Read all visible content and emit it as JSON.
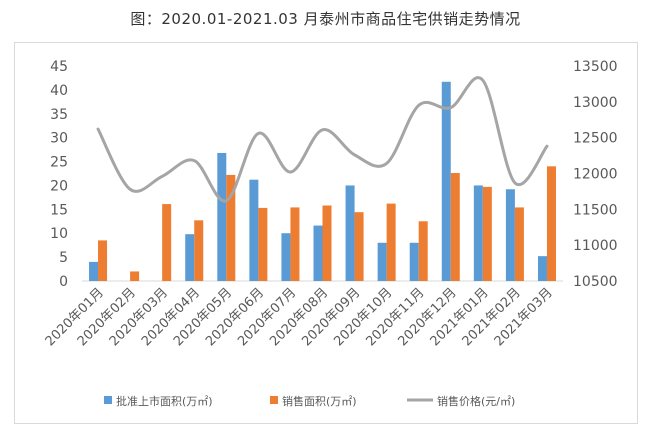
{
  "title": "图：2020.01-2021.03 月泰州市商品住宅供销走势情况",
  "chart_data": {
    "type": "bar",
    "categories": [
      "2020年01月",
      "2020年02月",
      "2020年03月",
      "2020年04月",
      "2020年05月",
      "2020年06月",
      "2020年07月",
      "2020年08月",
      "2020年09月",
      "2020年10月",
      "2020年11月",
      "2020年12月",
      "2021年01月",
      "2021年02月",
      "2021年03月"
    ],
    "series": [
      {
        "name": "批准上市面积(万㎡)",
        "type": "bar",
        "axis": "left",
        "color": "#5b9bd5",
        "values": [
          4,
          0,
          0,
          9.8,
          26.8,
          21.2,
          10,
          11.6,
          20,
          8,
          8,
          41.7,
          20,
          19.2,
          5.2
        ]
      },
      {
        "name": "销售面积(万㎡)",
        "type": "bar",
        "axis": "left",
        "color": "#ed7d31",
        "values": [
          8.5,
          2,
          16.1,
          12.7,
          22.2,
          15.3,
          15.4,
          15.8,
          14.4,
          16.2,
          12.5,
          22.6,
          19.7,
          15.4,
          24
        ]
      },
      {
        "name": "销售价格(元/㎡)",
        "type": "line",
        "axis": "right",
        "color": "#a5a5a5",
        "values": [
          12620,
          11780,
          11960,
          12180,
          11620,
          12560,
          12020,
          12610,
          12260,
          12140,
          12950,
          12920,
          13300,
          11870,
          12380
        ]
      }
    ],
    "y_left": {
      "min": 0,
      "max": 45,
      "step": 5
    },
    "y_right": {
      "min": 10500,
      "max": 13500,
      "step": 500
    },
    "legend": "bottom",
    "grid": false
  }
}
